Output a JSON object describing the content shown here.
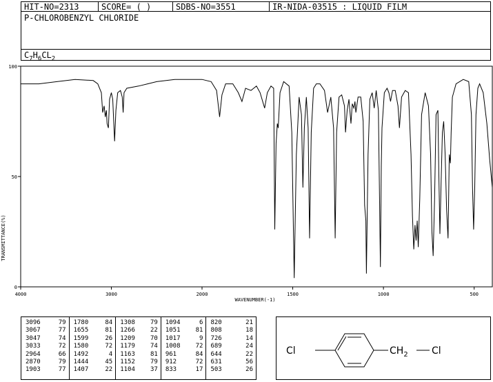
{
  "header": {
    "hit_no": "HIT-NO=2313",
    "score": "SCORE=  (   )",
    "sdbs_no": "SDBS-NO=3551",
    "ir_info": "IR-NIDA-03515 : LIQUID FILM"
  },
  "compound_name": "P-CHLOROBENZYL CHLORIDE",
  "formula": {
    "c": "C",
    "c_n": "7",
    "h": "H",
    "h_n": "6",
    "cl": "CL",
    "cl_n": "2"
  },
  "structure": {
    "left_label": "Cl",
    "ch2": "CH",
    "ch2_sub": "2",
    "right_label": "Cl"
  },
  "peak_table": [
    [
      [
        "3096",
        "79"
      ],
      [
        "3067",
        "77"
      ],
      [
        "3047",
        "74"
      ],
      [
        "3033",
        "72"
      ],
      [
        "2964",
        "66"
      ],
      [
        "2870",
        "79"
      ],
      [
        "1903",
        "77"
      ]
    ],
    [
      [
        "1780",
        "84"
      ],
      [
        "1655",
        "81"
      ],
      [
        "1599",
        "26"
      ],
      [
        "1580",
        "72"
      ],
      [
        "1492",
        "4"
      ],
      [
        "1444",
        "45"
      ],
      [
        "1407",
        "22"
      ]
    ],
    [
      [
        "1308",
        "79"
      ],
      [
        "1266",
        "22"
      ],
      [
        "1209",
        "70"
      ],
      [
        "1179",
        "74"
      ],
      [
        "1163",
        "81"
      ],
      [
        "1152",
        "79"
      ],
      [
        "1104",
        "37"
      ]
    ],
    [
      [
        "1094",
        "6"
      ],
      [
        "1051",
        "81"
      ],
      [
        "1017",
        "9"
      ],
      [
        "1008",
        "72"
      ],
      [
        "961",
        "84"
      ],
      [
        "912",
        "72"
      ],
      [
        "833",
        "17"
      ]
    ],
    [
      [
        "820",
        "21"
      ],
      [
        "808",
        "18"
      ],
      [
        "726",
        "14"
      ],
      [
        "689",
        "24"
      ],
      [
        "644",
        "22"
      ],
      [
        "631",
        "56"
      ],
      [
        "503",
        "26"
      ]
    ]
  ],
  "chart_data": {
    "type": "line",
    "xlabel": "WAVENUMBER(-1)",
    "ylabel": "TRANSMITTANCE(%)",
    "xlim": [
      4000,
      400
    ],
    "ylim": [
      0,
      100
    ],
    "xticks": [
      "4000",
      "3000",
      "2000",
      "1500",
      "1000",
      "500"
    ],
    "yticks": [
      "100",
      "50",
      "0"
    ],
    "series": [
      {
        "points": [
          [
            4000,
            92
          ],
          [
            3800,
            92
          ],
          [
            3600,
            93
          ],
          [
            3400,
            94
          ],
          [
            3200,
            93.5
          ],
          [
            3150,
            92
          ],
          [
            3110,
            88
          ],
          [
            3096,
            79
          ],
          [
            3080,
            82
          ],
          [
            3067,
            77
          ],
          [
            3055,
            80
          ],
          [
            3047,
            74
          ],
          [
            3033,
            72
          ],
          [
            3020,
            85
          ],
          [
            3000,
            88
          ],
          [
            2985,
            85
          ],
          [
            2964,
            66
          ],
          [
            2950,
            80
          ],
          [
            2930,
            88
          ],
          [
            2900,
            89
          ],
          [
            2880,
            86
          ],
          [
            2870,
            79
          ],
          [
            2860,
            88
          ],
          [
            2830,
            90
          ],
          [
            2700,
            91
          ],
          [
            2600,
            92
          ],
          [
            2500,
            93
          ],
          [
            2300,
            94
          ],
          [
            2150,
            94
          ],
          [
            2000,
            94
          ],
          [
            1950,
            93
          ],
          [
            1920,
            89
          ],
          [
            1903,
            77
          ],
          [
            1890,
            87
          ],
          [
            1870,
            92
          ],
          [
            1830,
            92
          ],
          [
            1800,
            88
          ],
          [
            1780,
            84
          ],
          [
            1760,
            90
          ],
          [
            1730,
            89
          ],
          [
            1700,
            91
          ],
          [
            1680,
            88
          ],
          [
            1655,
            81
          ],
          [
            1640,
            88
          ],
          [
            1620,
            91
          ],
          [
            1605,
            90
          ],
          [
            1599,
            26
          ],
          [
            1592,
            65
          ],
          [
            1585,
            74
          ],
          [
            1580,
            72
          ],
          [
            1570,
            88
          ],
          [
            1550,
            93
          ],
          [
            1520,
            91
          ],
          [
            1505,
            70
          ],
          [
            1492,
            4
          ],
          [
            1480,
            60
          ],
          [
            1465,
            86
          ],
          [
            1452,
            78
          ],
          [
            1444,
            45
          ],
          [
            1436,
            72
          ],
          [
            1425,
            86
          ],
          [
            1415,
            72
          ],
          [
            1407,
            22
          ],
          [
            1398,
            70
          ],
          [
            1385,
            90
          ],
          [
            1370,
            92
          ],
          [
            1350,
            92
          ],
          [
            1325,
            89
          ],
          [
            1308,
            79
          ],
          [
            1290,
            86
          ],
          [
            1275,
            72
          ],
          [
            1266,
            22
          ],
          [
            1258,
            70
          ],
          [
            1245,
            86
          ],
          [
            1230,
            87
          ],
          [
            1215,
            82
          ],
          [
            1209,
            70
          ],
          [
            1200,
            80
          ],
          [
            1190,
            85
          ],
          [
            1179,
            74
          ],
          [
            1172,
            83
          ],
          [
            1163,
            81
          ],
          [
            1157,
            84
          ],
          [
            1152,
            79
          ],
          [
            1140,
            86
          ],
          [
            1125,
            86
          ],
          [
            1112,
            75
          ],
          [
            1104,
            37
          ],
          [
            1097,
            30
          ],
          [
            1094,
            6
          ],
          [
            1085,
            60
          ],
          [
            1075,
            85
          ],
          [
            1062,
            88
          ],
          [
            1051,
            81
          ],
          [
            1040,
            89
          ],
          [
            1028,
            80
          ],
          [
            1017,
            9
          ],
          [
            1012,
            55
          ],
          [
            1008,
            72
          ],
          [
            995,
            88
          ],
          [
            980,
            90
          ],
          [
            970,
            88
          ],
          [
            961,
            84
          ],
          [
            950,
            89
          ],
          [
            935,
            89
          ],
          [
            920,
            82
          ],
          [
            912,
            72
          ],
          [
            900,
            86
          ],
          [
            880,
            89
          ],
          [
            862,
            88
          ],
          [
            848,
            60
          ],
          [
            840,
            32
          ],
          [
            833,
            17
          ],
          [
            826,
            28
          ],
          [
            820,
            21
          ],
          [
            814,
            30
          ],
          [
            808,
            18
          ],
          [
            800,
            40
          ],
          [
            790,
            78
          ],
          [
            770,
            88
          ],
          [
            752,
            82
          ],
          [
            740,
            60
          ],
          [
            733,
            25
          ],
          [
            726,
            14
          ],
          [
            718,
            40
          ],
          [
            710,
            78
          ],
          [
            700,
            80
          ],
          [
            695,
            52
          ],
          [
            689,
            24
          ],
          [
            682,
            48
          ],
          [
            675,
            70
          ],
          [
            668,
            75
          ],
          [
            660,
            60
          ],
          [
            652,
            35
          ],
          [
            644,
            22
          ],
          [
            637,
            60
          ],
          [
            631,
            56
          ],
          [
            627,
            70
          ],
          [
            620,
            86
          ],
          [
            600,
            92
          ],
          [
            560,
            94
          ],
          [
            530,
            93
          ],
          [
            515,
            78
          ],
          [
            509,
            45
          ],
          [
            503,
            26
          ],
          [
            497,
            45
          ],
          [
            490,
            78
          ],
          [
            480,
            90
          ],
          [
            470,
            92
          ],
          [
            450,
            88
          ],
          [
            430,
            74
          ],
          [
            415,
            58
          ],
          [
            400,
            45
          ]
        ]
      }
    ]
  }
}
